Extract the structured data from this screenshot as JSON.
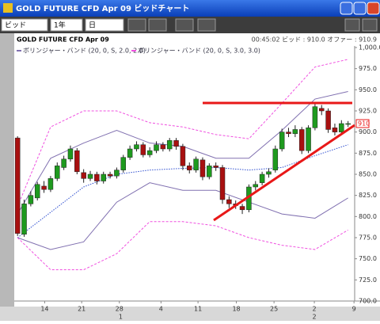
{
  "window": {
    "title": "GOLD FUTURE CFD Apr 09 ビッドチャート"
  },
  "toolbar": {
    "price_type": "ビッド",
    "period": "1年",
    "interval": "日"
  },
  "chart_header": {
    "instrument": "GOLD FUTURE CFD Apr 09",
    "quote": "00:45:02 ビッド : 910.0 オファー : 910.9"
  },
  "chart_data": {
    "type": "candlestick",
    "legend": [
      "ボリンジャー・バンド (20, 0, S, 2.0, 2.0)",
      "ボリンジャー・バンド (20, 0, S, 3.0, 3.0)"
    ],
    "open": [
      893,
      779,
      815,
      822,
      836,
      832,
      845,
      858,
      868,
      878,
      852,
      845,
      850,
      842,
      850,
      848,
      855,
      870,
      880,
      885,
      873,
      878,
      885,
      880,
      890,
      883,
      860,
      855,
      867,
      847,
      860,
      858,
      820,
      815,
      812,
      808,
      835,
      840,
      850,
      855,
      880,
      900,
      898,
      903,
      878,
      905,
      928,
      925,
      905,
      900,
      910
    ],
    "high": [
      895,
      820,
      830,
      841,
      842,
      848,
      864,
      872,
      884,
      881,
      856,
      854,
      853,
      853,
      853,
      858,
      873,
      884,
      889,
      888,
      882,
      889,
      888,
      893,
      893,
      886,
      864,
      871,
      870,
      863,
      864,
      861,
      824,
      819,
      815,
      838,
      842,
      853,
      857,
      884,
      904,
      905,
      908,
      906,
      908,
      933,
      932,
      928,
      910,
      914,
      913
    ],
    "low": [
      777,
      776,
      812,
      819,
      828,
      829,
      842,
      855,
      865,
      850,
      840,
      842,
      838,
      839,
      845,
      845,
      852,
      867,
      877,
      870,
      870,
      875,
      877,
      877,
      879,
      855,
      851,
      852,
      843,
      844,
      854,
      815,
      810,
      809,
      803,
      805,
      831,
      837,
      846,
      852,
      877,
      894,
      894,
      874,
      875,
      902,
      920,
      899,
      896,
      897,
      906
    ],
    "close": [
      780,
      815,
      825,
      838,
      832,
      845,
      860,
      868,
      880,
      853,
      845,
      850,
      842,
      850,
      848,
      855,
      870,
      880,
      885,
      873,
      878,
      885,
      880,
      890,
      883,
      860,
      855,
      868,
      847,
      860,
      858,
      820,
      815,
      813,
      808,
      835,
      838,
      850,
      853,
      880,
      900,
      898,
      903,
      878,
      905,
      930,
      925,
      903,
      900,
      910,
      910
    ],
    "up_color": "#1e9a1e",
    "down_color": "#a81010",
    "bands": {
      "x": [
        0,
        5,
        10,
        15,
        20,
        25,
        30,
        35,
        40,
        45,
        50
      ],
      "series": [
        {
          "color": "#3050d0",
          "style": "dotted",
          "values": [
            775,
            805,
            835,
            850,
            855,
            857,
            858,
            855,
            858,
            872,
            885
          ]
        },
        {
          "color": "#8070b0",
          "style": "solid",
          "values": [
            803,
            869,
            887,
            902,
            887,
            883,
            869,
            869,
            902,
            939,
            948
          ]
        },
        {
          "color": "#8070b0",
          "style": "solid",
          "values": [
            775,
            761,
            770,
            817,
            840,
            831,
            831,
            817,
            803,
            798,
            822
          ]
        },
        {
          "color": "#f050e0",
          "style": "dashed",
          "values": [
            812,
            906,
            925,
            925,
            911,
            906,
            897,
            892,
            934,
            977,
            986
          ]
        },
        {
          "color": "#f050e0",
          "style": "dashed",
          "values": [
            775,
            737,
            737,
            756,
            794,
            794,
            789,
            775,
            766,
            761,
            784
          ]
        }
      ]
    },
    "last_price": 910,
    "xlim": [
      -0.5,
      51
    ],
    "xticks": [
      {
        "value": 4.1,
        "label": "14"
      },
      {
        "value": 9.7,
        "label": "21"
      },
      {
        "value": 15.4,
        "label": "28"
      },
      {
        "value": 21.7,
        "label": "4"
      },
      {
        "value": 27.3,
        "label": "11"
      },
      {
        "value": 33.1,
        "label": "18"
      },
      {
        "value": 38.8,
        "label": "25"
      },
      {
        "value": 44.9,
        "label": "2"
      },
      {
        "value": 50.9,
        "label": "9"
      }
    ],
    "month_ticks": [
      {
        "value": 15.6,
        "label": "1"
      },
      {
        "value": 44.9,
        "label": "2"
      }
    ],
    "ylim": [
      700,
      1000
    ],
    "yticks": [
      {
        "value": 700,
        "label": "700.0"
      },
      {
        "value": 725,
        "label": "725.0"
      },
      {
        "value": 750,
        "label": "750.0"
      },
      {
        "value": 775,
        "label": "775.0"
      },
      {
        "value": 800,
        "label": "800.0"
      },
      {
        "value": 825,
        "label": "825.0"
      },
      {
        "value": 850,
        "label": "850.0"
      },
      {
        "value": 875,
        "label": "875.0"
      },
      {
        "value": 900,
        "label": "900.0"
      },
      {
        "value": 925,
        "label": "925.0"
      },
      {
        "value": 950,
        "label": "950.0"
      },
      {
        "value": 975,
        "label": "975.0"
      },
      {
        "value": 1000,
        "label": "1,000.0"
      }
    ]
  }
}
